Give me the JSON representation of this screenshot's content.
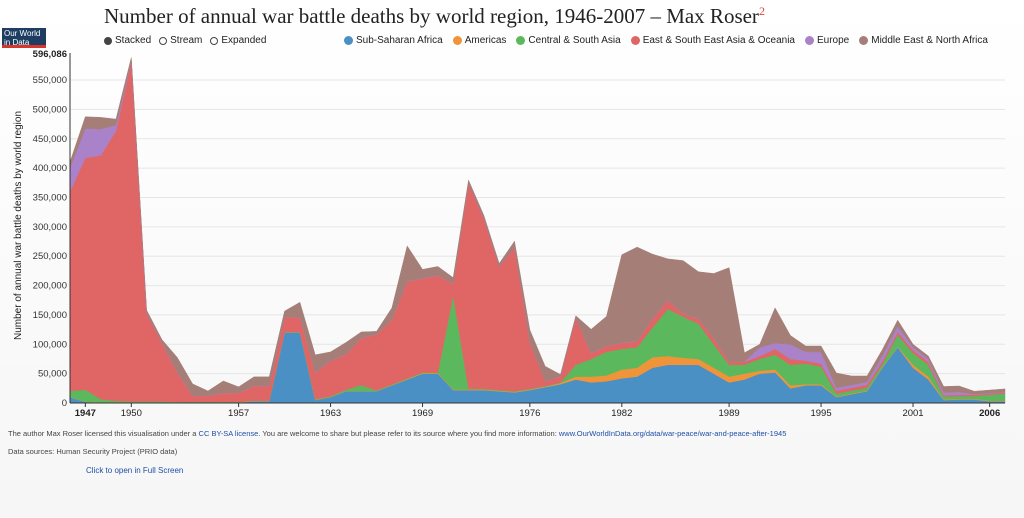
{
  "header": {
    "title": "Number of annual war battle deaths by world region, 1946-2007 – Max Roser",
    "title_sup": "2",
    "logo_line1": "Our World",
    "logo_line2": "in Data"
  },
  "modes": [
    {
      "label": "Stacked",
      "selected": true
    },
    {
      "label": "Stream",
      "selected": false
    },
    {
      "label": "Expanded",
      "selected": false
    }
  ],
  "footer": {
    "license_text": "The author Max Roser licensed this visualisation under a",
    "license_link": "CC BY-SA license",
    "license_rest": ". You are welcome to share but please refer to its source where you find more information:",
    "url": "www.OurWorldInData.org/data/war-peace/war-and-peace-after-1945",
    "sources": "Data sources: Human Security Project (PRIO data)",
    "fullscreen": "Click to open in Full Screen"
  },
  "chart_data": {
    "type": "area",
    "stacked": true,
    "ylabel": "Number of annual war battle deaths by world region",
    "ylim": [
      0,
      596086
    ],
    "y_ticks": [
      0,
      50000,
      100000,
      150000,
      200000,
      250000,
      300000,
      350000,
      400000,
      450000,
      500000,
      550000
    ],
    "y_max_label": "596,086",
    "x_tick_labels": [
      1947,
      1950,
      1957,
      1963,
      1969,
      1976,
      1982,
      1989,
      1995,
      2001,
      2006
    ],
    "x_bold_ticks": [
      1947,
      2006
    ],
    "legend_placement": "top",
    "x": [
      1946,
      1947,
      1948,
      1949,
      1950,
      1951,
      1952,
      1953,
      1954,
      1955,
      1956,
      1957,
      1958,
      1959,
      1960,
      1961,
      1962,
      1963,
      1964,
      1965,
      1966,
      1967,
      1968,
      1969,
      1970,
      1971,
      1972,
      1973,
      1974,
      1975,
      1976,
      1977,
      1978,
      1979,
      1980,
      1981,
      1982,
      1983,
      1984,
      1985,
      1986,
      1987,
      1988,
      1989,
      1990,
      1991,
      1992,
      1993,
      1994,
      1995,
      1996,
      1997,
      1998,
      1999,
      2000,
      2001,
      2002,
      2003,
      2004,
      2005,
      2006,
      2007
    ],
    "series": [
      {
        "name": "Sub-Saharan Africa",
        "color": "#4a90c4",
        "values": [
          10000,
          2000,
          1000,
          1000,
          1000,
          1000,
          1000,
          1000,
          1000,
          1000,
          1000,
          1000,
          3000,
          3000,
          120000,
          120000,
          5000,
          10000,
          20000,
          20000,
          20000,
          30000,
          40000,
          50000,
          50000,
          22000,
          22000,
          22000,
          20000,
          18000,
          22000,
          27000,
          32000,
          40000,
          35000,
          37000,
          42000,
          45000,
          60000,
          65000,
          65000,
          65000,
          50000,
          35000,
          40000,
          50000,
          52000,
          25000,
          30000,
          30000,
          10000,
          15000,
          20000,
          60000,
          95000,
          60000,
          40000,
          5000,
          6000,
          6000,
          3000,
          3000
        ]
      },
      {
        "name": "Americas",
        "color": "#f0943a",
        "values": [
          500,
          500,
          500,
          500,
          500,
          500,
          500,
          500,
          500,
          500,
          500,
          500,
          500,
          500,
          500,
          500,
          500,
          500,
          500,
          500,
          500,
          500,
          1000,
          1000,
          1000,
          1000,
          1000,
          1000,
          1000,
          1000,
          1000,
          1000,
          2000,
          5000,
          10000,
          10000,
          15000,
          15000,
          18000,
          15000,
          12000,
          10000,
          10000,
          10000,
          10000,
          5000,
          5000,
          5000,
          2000,
          2000,
          1000,
          1000,
          1000,
          1000,
          1000,
          5000,
          5000,
          1000,
          1000,
          1000,
          1000,
          1000
        ]
      },
      {
        "name": "Central & South Asia",
        "color": "#5cb85c",
        "values": [
          10000,
          20000,
          5000,
          2000,
          1000,
          1000,
          1000,
          500,
          500,
          500,
          500,
          500,
          500,
          500,
          500,
          500,
          1000,
          1000,
          2000,
          10000,
          1000,
          1000,
          1000,
          1000,
          1000,
          160000,
          1000,
          1000,
          1000,
          1000,
          1000,
          1000,
          1000,
          20000,
          30000,
          40000,
          35000,
          35000,
          50000,
          80000,
          70000,
          60000,
          40000,
          20000,
          15000,
          20000,
          25000,
          35000,
          35000,
          30000,
          5000,
          5000,
          5000,
          5000,
          20000,
          20000,
          20000,
          5000,
          5000,
          5000,
          10000,
          12000
        ]
      },
      {
        "name": "East & South East Asia & Oceania",
        "color": "#e06666",
        "values": [
          340000,
          395000,
          415000,
          460000,
          580000,
          150000,
          100000,
          50000,
          10000,
          10000,
          15000,
          15000,
          25000,
          25000,
          25000,
          25000,
          45000,
          60000,
          60000,
          80000,
          95000,
          110000,
          165000,
          160000,
          165000,
          20000,
          350000,
          290000,
          210000,
          245000,
          80000,
          8000,
          10000,
          80000,
          10000,
          10000,
          10000,
          10000,
          15000,
          15000,
          5000,
          8000,
          10000,
          5000,
          5000,
          5000,
          10000,
          10000,
          5000,
          5000,
          5000,
          5000,
          5000,
          5000,
          5000,
          5000,
          5000,
          2000,
          2000,
          2000,
          2000,
          2000
        ]
      },
      {
        "name": "Europe",
        "color": "#a982c9",
        "values": [
          40000,
          50000,
          45000,
          10000,
          1000,
          500,
          500,
          500,
          500,
          500,
          500,
          500,
          500,
          500,
          500,
          500,
          500,
          500,
          500,
          500,
          500,
          500,
          500,
          500,
          500,
          500,
          500,
          500,
          500,
          500,
          500,
          500,
          500,
          500,
          500,
          500,
          500,
          500,
          500,
          500,
          500,
          500,
          500,
          500,
          500,
          15000,
          10000,
          25000,
          15000,
          20000,
          5000,
          5000,
          5000,
          10000,
          10000,
          5000,
          5000,
          5000,
          5000,
          1000,
          1000,
          1000
        ]
      },
      {
        "name": "Middle East & North Africa",
        "color": "#a57f77",
        "values": [
          10000,
          20000,
          20000,
          10000,
          5000,
          5000,
          5000,
          25000,
          20000,
          8000,
          20000,
          10000,
          15000,
          15000,
          10000,
          25000,
          30000,
          15000,
          20000,
          10000,
          5000,
          20000,
          60000,
          15000,
          15000,
          10000,
          5000,
          5000,
          5000,
          10000,
          20000,
          25000,
          3000,
          3000,
          40000,
          50000,
          150000,
          160000,
          110000,
          70000,
          90000,
          80000,
          110000,
          160000,
          15000,
          5000,
          60000,
          15000,
          10000,
          10000,
          25000,
          15000,
          10000,
          10000,
          10000,
          5000,
          5000,
          10000,
          10000,
          5000,
          5000,
          5000
        ]
      }
    ]
  }
}
